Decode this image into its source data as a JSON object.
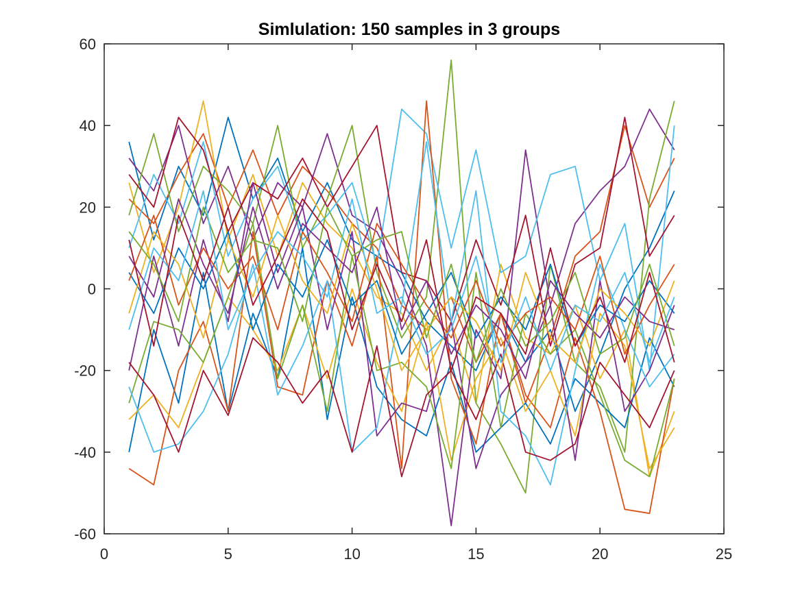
{
  "chart_data": {
    "type": "line",
    "title": "Simlulation: 150 samples in 3 groups",
    "xlabel": "",
    "ylabel": "",
    "xlim": [
      0,
      25
    ],
    "ylim": [
      -60,
      60
    ],
    "x_ticks": [
      0,
      5,
      10,
      15,
      20,
      25
    ],
    "y_ticks": [
      -60,
      -40,
      -20,
      0,
      20,
      40,
      60
    ],
    "x_tick_labels": [
      "0",
      "5",
      "10",
      "15",
      "20",
      "25"
    ],
    "y_tick_labels": [
      "-60",
      "-40",
      "-20",
      "0",
      "20",
      "40",
      "60"
    ],
    "grid": false,
    "legend": "none",
    "colors": [
      "#0072BD",
      "#D95319",
      "#EDB120",
      "#7E2F8E",
      "#77AC30",
      "#4DBEEE",
      "#A2142F"
    ],
    "x": [
      1,
      2,
      3,
      4,
      5,
      6,
      7,
      8,
      9,
      10,
      11,
      12,
      13,
      14,
      15,
      16,
      17,
      18,
      19,
      20,
      21,
      22,
      23
    ],
    "series": [
      {
        "values": [
          36,
          12,
          30,
          18,
          42,
          22,
          32,
          14,
          26,
          12,
          8,
          4,
          -8,
          -14,
          -20,
          -6,
          -18,
          -10,
          -30,
          -16,
          0,
          10,
          24
        ]
      },
      {
        "values": [
          22,
          16,
          28,
          38,
          20,
          34,
          18,
          30,
          24,
          16,
          10,
          -4,
          -10,
          -2,
          -18,
          -6,
          -28,
          -12,
          8,
          14,
          40,
          20,
          32
        ]
      },
      {
        "values": [
          26,
          4,
          20,
          46,
          12,
          28,
          8,
          26,
          16,
          10,
          -2,
          -6,
          -20,
          -8,
          -28,
          6,
          -12,
          -16,
          -4,
          -22,
          -10,
          -46,
          -30
        ]
      },
      {
        "values": [
          32,
          24,
          40,
          16,
          30,
          12,
          26,
          20,
          38,
          18,
          14,
          2,
          -14,
          -58,
          -10,
          -22,
          34,
          -4,
          16,
          24,
          30,
          44,
          34
        ]
      },
      {
        "values": [
          18,
          38,
          14,
          30,
          24,
          16,
          40,
          10,
          22,
          40,
          4,
          -12,
          -2,
          56,
          -28,
          -38,
          -50,
          6,
          -18,
          -24,
          -40,
          22,
          46
        ]
      },
      {
        "values": [
          10,
          28,
          16,
          36,
          8,
          22,
          30,
          12,
          18,
          26,
          6,
          44,
          38,
          10,
          34,
          4,
          8,
          28,
          30,
          2,
          16,
          -20,
          40
        ]
      },
      {
        "values": [
          28,
          20,
          42,
          34,
          14,
          26,
          22,
          32,
          20,
          30,
          40,
          4,
          2,
          -8,
          12,
          -4,
          18,
          -14,
          6,
          10,
          42,
          8,
          18
        ]
      },
      {
        "values": [
          -40,
          -10,
          -28,
          4,
          -30,
          -6,
          -22,
          10,
          -32,
          -2,
          -24,
          -32,
          -36,
          -18,
          -40,
          -34,
          -28,
          -38,
          -22,
          -28,
          -34,
          -12,
          -24
        ]
      },
      {
        "values": [
          -44,
          -48,
          -20,
          -8,
          -30,
          14,
          -24,
          -26,
          2,
          -14,
          8,
          -44,
          46,
          -22,
          -38,
          -6,
          -26,
          -34,
          -12,
          -30,
          -54,
          -55,
          -22
        ]
      },
      {
        "values": [
          -32,
          -26,
          -34,
          -18,
          -2,
          -10,
          -20,
          -4,
          -22,
          0,
          -18,
          -30,
          -8,
          -42,
          -22,
          -12,
          -30,
          -20,
          -36,
          -6,
          -14,
          -44,
          -34
        ]
      },
      {
        "values": [
          -20,
          8,
          -14,
          12,
          -8,
          26,
          4,
          20,
          -10,
          14,
          -36,
          -28,
          -30,
          -8,
          -44,
          -26,
          -18,
          -4,
          -42,
          2,
          -30,
          -20,
          -4
        ]
      },
      {
        "values": [
          -28,
          -8,
          -10,
          -18,
          -2,
          16,
          -22,
          -4,
          -30,
          8,
          -20,
          -18,
          -24,
          -44,
          4,
          -34,
          -6,
          -16,
          -10,
          -26,
          -42,
          -46,
          -22
        ]
      },
      {
        "values": [
          -24,
          -40,
          -38,
          -30,
          -16,
          6,
          -26,
          -14,
          2,
          -40,
          -34,
          -4,
          36,
          -8,
          24,
          -30,
          -36,
          -48,
          -20,
          6,
          -10,
          -24,
          -16
        ]
      },
      {
        "values": [
          -18,
          -26,
          -40,
          -20,
          -31,
          -12,
          -18,
          -28,
          -20,
          -40,
          -14,
          -46,
          -26,
          -20,
          -32,
          -16,
          -40,
          -42,
          -38,
          -18,
          -26,
          -34,
          -20
        ]
      },
      {
        "values": [
          4,
          -6,
          10,
          0,
          14,
          -10,
          6,
          -2,
          12,
          -4,
          2,
          -16,
          -6,
          4,
          -12,
          -2,
          -10,
          6,
          -14,
          -4,
          -8,
          2,
          -6
        ]
      },
      {
        "values": [
          2,
          18,
          -4,
          10,
          0,
          8,
          -10,
          14,
          4,
          -8,
          16,
          6,
          -4,
          -12,
          2,
          -14,
          -6,
          -2,
          -10,
          8,
          -16,
          -4,
          6
        ]
      },
      {
        "values": [
          -6,
          14,
          6,
          -12,
          12,
          -2,
          18,
          2,
          -6,
          16,
          0,
          -20,
          -10,
          -2,
          -8,
          -20,
          4,
          -12,
          -18,
          0,
          -6,
          -14,
          2
        ]
      },
      {
        "values": [
          8,
          -2,
          22,
          6,
          -6,
          20,
          0,
          16,
          10,
          4,
          20,
          -10,
          2,
          -16,
          -4,
          -10,
          -22,
          2,
          -6,
          -12,
          -2,
          -8,
          -10
        ]
      },
      {
        "values": [
          14,
          6,
          -8,
          20,
          4,
          12,
          10,
          -8,
          20,
          8,
          12,
          14,
          -12,
          6,
          -18,
          0,
          -14,
          -8,
          4,
          -16,
          -12,
          6,
          -14
        ]
      },
      {
        "values": [
          -10,
          10,
          2,
          24,
          -10,
          4,
          14,
          8,
          -2,
          22,
          -6,
          -2,
          -16,
          -10,
          8,
          -18,
          -2,
          -20,
          -4,
          -8,
          4,
          -18,
          -2
        ]
      },
      {
        "values": [
          12,
          -14,
          18,
          2,
          20,
          -4,
          8,
          22,
          14,
          -10,
          6,
          -8,
          12,
          -20,
          -2,
          -6,
          -16,
          10,
          -14,
          -2,
          -18,
          4,
          -18
        ]
      }
    ]
  }
}
